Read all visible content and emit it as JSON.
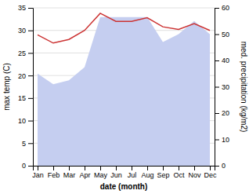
{
  "chart_data": {
    "type": "line",
    "categories": [
      "Jan",
      "Feb",
      "Mar",
      "Apr",
      "May",
      "Jun",
      "Jul",
      "Aug",
      "Sep",
      "Oct",
      "Nov",
      "Dec"
    ],
    "series": [
      {
        "type": "area",
        "color": "#c5cef0",
        "axis": "y2",
        "values": [
          35,
          31,
          32.5,
          37.5,
          56.5,
          56.5,
          56.5,
          56.5,
          47,
          50,
          55,
          50
        ]
      },
      {
        "type": "line",
        "color": "#cc3333",
        "values": [
          29,
          27.2,
          28,
          30,
          33.8,
          32,
          32,
          32.8,
          30.8,
          30.2,
          31.5,
          30
        ]
      }
    ],
    "x_label": "date (month)",
    "y_label": "max temp (C)",
    "y2_label": "med. precipitation (kg/m2)",
    "ylim": [
      0,
      35
    ],
    "yticks": [
      0,
      5,
      10,
      15,
      20,
      25,
      30,
      35
    ],
    "y2lim": [
      0,
      60
    ],
    "y2ticks": [
      0,
      10,
      20,
      30,
      40,
      50,
      60
    ],
    "grid": true
  }
}
